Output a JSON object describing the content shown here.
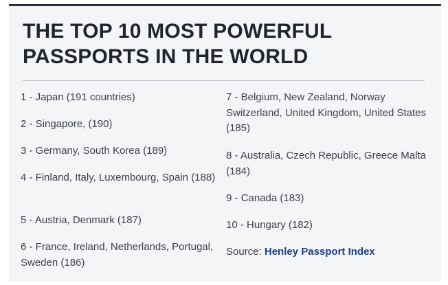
{
  "title": {
    "line1": "THE TOP 10 MOST POWERFUL",
    "line2": "PASSPORTS IN THE WORLD"
  },
  "left_entries": [
    "1 - Japan (191 countries)",
    "2 - Singapore, (190)",
    "3 - Germany, South Korea (189)",
    "4 - Finland, Italy, Luxembourg, Spain (188)",
    "5 - Austria, Denmark (187)",
    "6 - France, Ireland, Netherlands, Portugal, Sweden (186)"
  ],
  "right_entries": [
    "7 - Belgium, New Zealand, Norway Switzerland, United Kingdom, United States (185)",
    "8 - Australia, Czech Republic, Greece Malta (184)",
    "9 - Canada (183)",
    "10 - Hungary (182)"
  ],
  "source": {
    "label": "Source: ",
    "link": "Henley Passport Index"
  },
  "colors": {
    "title": "#1f2430",
    "text": "#3b3f4a",
    "link": "#1d3f86",
    "background": "#f4f5f7"
  }
}
